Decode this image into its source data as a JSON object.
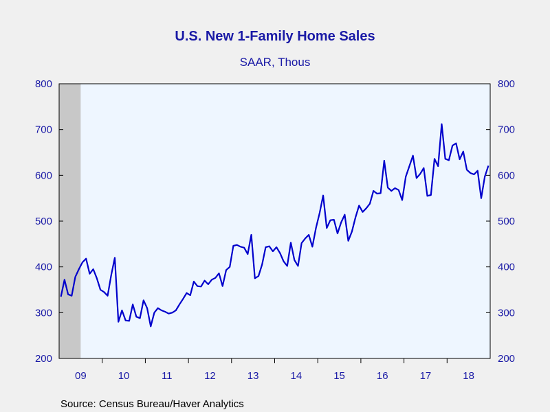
{
  "colors": {
    "background": "#f0f0f0",
    "plot_background": "#eef6ff",
    "line": "#0000cc",
    "text": "#1a1aa6",
    "recession": "#c8c8c8"
  },
  "chart_data": {
    "type": "line",
    "title": "U.S. New 1-Family Home Sales",
    "subtitle": "SAAR, Thous",
    "source": "Source:  Census Bureau/Haver Analytics",
    "ylim": [
      200,
      800
    ],
    "yticks_left": [
      "200",
      "300",
      "400",
      "500",
      "600",
      "700",
      "800"
    ],
    "yticks_right": [
      "200",
      "300",
      "400",
      "500",
      "600",
      "700",
      "800"
    ],
    "xticks": [
      "09",
      "10",
      "11",
      "12",
      "13",
      "14",
      "15",
      "16",
      "17",
      "18"
    ],
    "x_start": "2009-01",
    "x_end": "2018-12",
    "recession": {
      "start": "2009-01",
      "end": "2009-06"
    },
    "series": [
      {
        "values": [
          335,
          372,
          340,
          337,
          378,
          395,
          410,
          418,
          385,
          395,
          375,
          350,
          345,
          337,
          382,
          420,
          280,
          305,
          283,
          282,
          318,
          291,
          288,
          327,
          310,
          270,
          300,
          310,
          305,
          302,
          298,
          300,
          305,
          318,
          330,
          343,
          338,
          368,
          358,
          357,
          370,
          362,
          372,
          376,
          386,
          358,
          393,
          400,
          446,
          448,
          444,
          442,
          428,
          470,
          375,
          380,
          405,
          443,
          445,
          434,
          443,
          430,
          412,
          402,
          453,
          415,
          402,
          452,
          462,
          470,
          444,
          485,
          517,
          556,
          485,
          502,
          503,
          473,
          497,
          514,
          457,
          477,
          508,
          534,
          520,
          528,
          538,
          566,
          560,
          561,
          632,
          573,
          566,
          572,
          568,
          546,
          597,
          620,
          643,
          594,
          603,
          616,
          555,
          557,
          636,
          620,
          712,
          636,
          633,
          665,
          670,
          635,
          652,
          612,
          605,
          602,
          610,
          550,
          597,
          621
        ]
      }
    ]
  }
}
